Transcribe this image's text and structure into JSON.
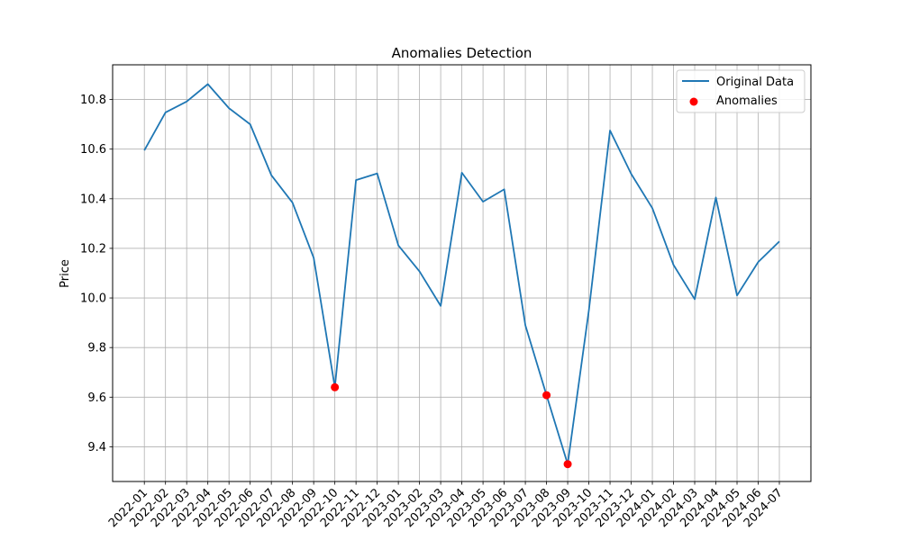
{
  "chart_data": {
    "type": "line",
    "title": "Anomalies Detection",
    "xlabel": "",
    "ylabel": "Price",
    "categories": [
      "2022-01",
      "2022-02",
      "2022-03",
      "2022-04",
      "2022-05",
      "2022-06",
      "2022-07",
      "2022-08",
      "2022-09",
      "2022-10",
      "2022-11",
      "2022-12",
      "2023-01",
      "2023-02",
      "2023-03",
      "2023-04",
      "2023-05",
      "2023-06",
      "2023-07",
      "2023-08",
      "2023-09",
      "2023-10",
      "2023-11",
      "2023-12",
      "2024-01",
      "2024-02",
      "2024-03",
      "2024-04",
      "2024-05",
      "2024-06",
      "2024-07"
    ],
    "ylim": [
      9.26,
      10.94
    ],
    "yticks": [
      9.4,
      9.6,
      9.8,
      10.0,
      10.2,
      10.4,
      10.6,
      10.8
    ],
    "ytick_labels": [
      "9.4",
      "9.6",
      "9.8",
      "10.0",
      "10.2",
      "10.4",
      "10.6",
      "10.8"
    ],
    "grid": true,
    "legend_position": "top-right",
    "series": [
      {
        "name": "Original Data",
        "kind": "line",
        "color": "#1f77b4",
        "values": [
          10.595,
          10.748,
          10.792,
          10.862,
          10.765,
          10.7,
          10.495,
          10.384,
          10.162,
          9.64,
          10.475,
          10.502,
          10.212,
          10.107,
          9.968,
          10.505,
          10.388,
          10.438,
          9.89,
          9.608,
          9.33,
          9.95,
          10.675,
          10.5,
          10.362,
          10.133,
          9.995,
          10.405,
          10.01,
          10.145,
          10.228
        ]
      },
      {
        "name": "Anomalies",
        "kind": "scatter",
        "color": "#ff0000",
        "points": [
          {
            "x": "2022-10",
            "y": 9.64
          },
          {
            "x": "2023-08",
            "y": 9.608
          },
          {
            "x": "2023-09",
            "y": 9.33
          }
        ]
      }
    ]
  }
}
